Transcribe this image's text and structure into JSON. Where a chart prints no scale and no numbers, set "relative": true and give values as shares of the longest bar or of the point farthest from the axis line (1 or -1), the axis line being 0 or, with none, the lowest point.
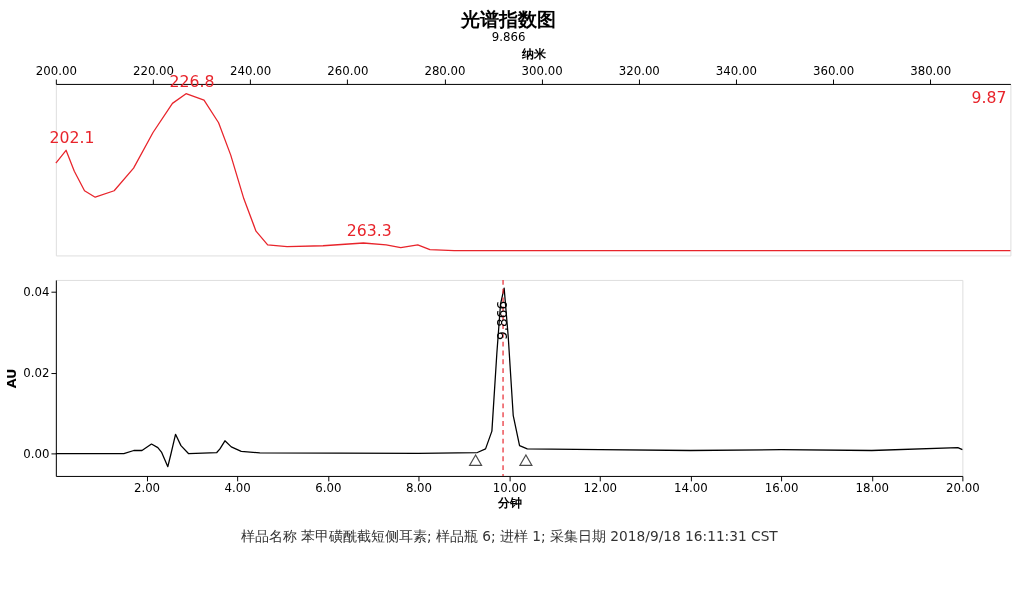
{
  "chart_data": [
    {
      "type": "line",
      "title": "光谱指数图",
      "subtitle": "9.866",
      "xlabel": "纳米",
      "relative": true,
      "grid": false,
      "legend": false,
      "marker": "none",
      "line_style": "solid",
      "xlim": [
        200,
        396.5
      ],
      "xticks": [
        {
          "value": 200,
          "label": "200.00"
        },
        {
          "value": 220,
          "label": "220.00"
        },
        {
          "value": 240,
          "label": "240.00"
        },
        {
          "value": 260,
          "label": "260.00"
        },
        {
          "value": 280,
          "label": "280.00"
        },
        {
          "value": 300,
          "label": "300.00"
        },
        {
          "value": 320,
          "label": "320.00"
        },
        {
          "value": 340,
          "label": "340.00"
        },
        {
          "value": 360,
          "label": "360.00"
        },
        {
          "value": 380,
          "label": "380.00"
        }
      ],
      "series": [
        {
          "color": "#e8242b",
          "x": [
            200,
            202.1,
            203.8,
            205.9,
            208.1,
            212,
            216,
            220,
            224,
            226.8,
            230.5,
            233.5,
            236,
            238.7,
            241.2,
            243.6,
            247.6,
            255,
            263.3,
            268,
            271,
            274.5,
            277,
            282,
            300,
            340,
            396.5
          ],
          "values": [
            0.57,
            0.65,
            0.52,
            0.4,
            0.36,
            0.4,
            0.54,
            0.76,
            0.94,
            1.0,
            0.96,
            0.82,
            0.62,
            0.35,
            0.15,
            0.065,
            0.054,
            0.06,
            0.077,
            0.065,
            0.048,
            0.065,
            0.036,
            0.03,
            0.03,
            0.03,
            0.03
          ]
        }
      ],
      "annotations": [
        {
          "text": "202.1",
          "x": 202.1,
          "y": 0.65
        },
        {
          "text": "226.8",
          "x": 226.8,
          "y": 1.0
        },
        {
          "text": "263.3",
          "x": 263.3,
          "y": 0.077
        },
        "9.87"
      ]
    },
    {
      "type": "line",
      "xlabel": "分钟",
      "ylabel": "AU",
      "grid": false,
      "legend": false,
      "marker": "none",
      "line_style": "solid",
      "xlim": [
        0,
        20
      ],
      "ylim": [
        -0.0055,
        0.043
      ],
      "xticks": [
        {
          "value": 2,
          "label": "2.00"
        },
        {
          "value": 4,
          "label": "4.00"
        },
        {
          "value": 6,
          "label": "6.00"
        },
        {
          "value": 8,
          "label": "8.00"
        },
        {
          "value": 10,
          "label": "10.00"
        },
        {
          "value": 12,
          "label": "12.00"
        },
        {
          "value": 14,
          "label": "14.00"
        },
        {
          "value": 16,
          "label": "16.00"
        },
        {
          "value": 18,
          "label": "18.00"
        },
        {
          "value": 20,
          "label": "20.00"
        }
      ],
      "yticks": [
        {
          "value": 0,
          "label": "0.00"
        },
        {
          "value": 0.02,
          "label": "0.02"
        },
        {
          "value": 0.04,
          "label": "0.04"
        }
      ],
      "series": [
        {
          "color": "#000000",
          "x": [
            0,
            1.5,
            1.72,
            1.9,
            2.11,
            2.25,
            2.33,
            2.47,
            2.54,
            2.64,
            2.76,
            2.93,
            3.55,
            3.62,
            3.73,
            3.87,
            4.09,
            4.5,
            8.0,
            9.3,
            9.48,
            9.62,
            9.73,
            9.81,
            9.89,
            9.98,
            10.09,
            10.23,
            10.4,
            12,
            14,
            16,
            18,
            19.9,
            20
          ],
          "values": [
            0,
            0,
            0.0008,
            0.0008,
            0.0024,
            0.0015,
            0.0004,
            -0.0032,
            0,
            0.0048,
            0.002,
            0,
            0.0003,
            0.0012,
            0.0032,
            0.0017,
            0.0006,
            0.0002,
            0.0001,
            0.0003,
            0.0012,
            0.0056,
            0.025,
            0.037,
            0.041,
            0.029,
            0.0095,
            0.002,
            0.0012,
            0.001,
            0.0008,
            0.001,
            0.0008,
            0.0015,
            0.001
          ]
        },
        {
          "type": "scatter",
          "marker": "triangle",
          "color": "#000000",
          "x": [
            9.26,
            10.37
          ],
          "values": [
            -0.0016,
            -0.0016
          ]
        }
      ],
      "ref_lines": [
        {
          "axis": "x",
          "value": 9.866,
          "color": "#e8242b",
          "line_style": "dashed"
        }
      ],
      "annotations": [
        {
          "text": "9.866",
          "x": 9.866,
          "y": 0.033
        },
        "样品名称 苯甲磺酰截短侧耳素; 样品瓶 6; 进样 1; 采集日期 2018/9/18 16:11:31 CST"
      ]
    }
  ]
}
